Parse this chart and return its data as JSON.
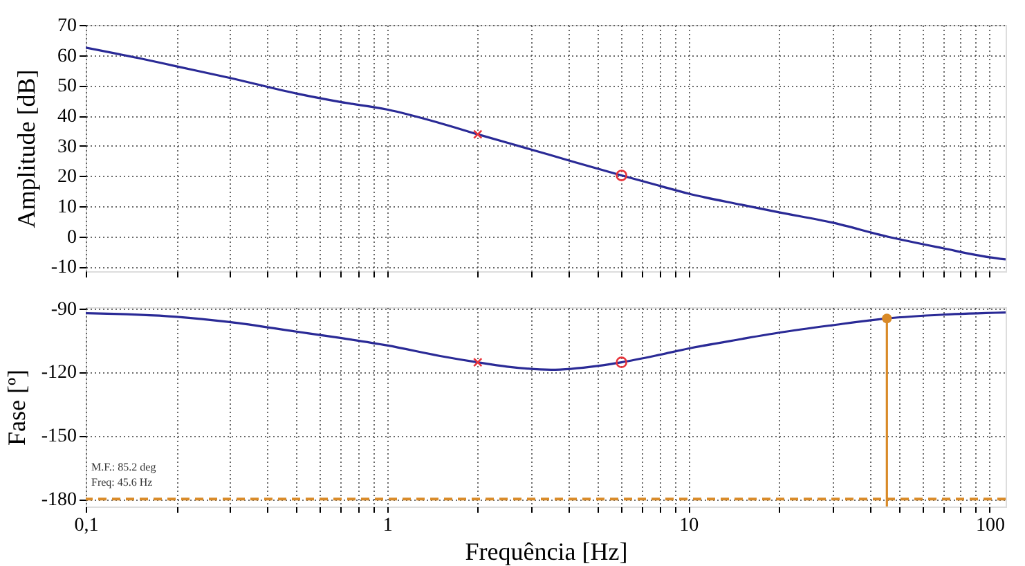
{
  "chart_data": [
    {
      "type": "line",
      "ylabel": "Amplitude [dB]",
      "log": "x",
      "xlim": [
        0.1,
        113
      ],
      "ylim": [
        -11.5,
        70
      ],
      "xticks": [
        {
          "value": 0.1,
          "label": null
        },
        {
          "value": 0.2,
          "label": null
        },
        {
          "value": 0.3,
          "label": null
        },
        {
          "value": 0.4,
          "label": null
        },
        {
          "value": 0.5,
          "label": null
        },
        {
          "value": 0.6,
          "label": null
        },
        {
          "value": 0.7,
          "label": null
        },
        {
          "value": 0.8,
          "label": null
        },
        {
          "value": 0.9,
          "label": null
        },
        {
          "value": 1,
          "label": null
        },
        {
          "value": 2,
          "label": null
        },
        {
          "value": 3,
          "label": null
        },
        {
          "value": 4,
          "label": null
        },
        {
          "value": 5,
          "label": null
        },
        {
          "value": 6,
          "label": null
        },
        {
          "value": 7,
          "label": null
        },
        {
          "value": 8,
          "label": null
        },
        {
          "value": 9,
          "label": null
        },
        {
          "value": 10,
          "label": null
        },
        {
          "value": 20,
          "label": null
        },
        {
          "value": 30,
          "label": null
        },
        {
          "value": 40,
          "label": null
        },
        {
          "value": 50,
          "label": null
        },
        {
          "value": 60,
          "label": null
        },
        {
          "value": 70,
          "label": null
        },
        {
          "value": 80,
          "label": null
        },
        {
          "value": 90,
          "label": null
        },
        {
          "value": 100,
          "label": null
        }
      ],
      "yticks": [
        -10,
        0,
        10,
        20,
        30,
        40,
        50,
        60,
        70
      ],
      "grid": true,
      "tick_labels": "y",
      "series": [
        {
          "color": "#2a2a96",
          "x": [
            0.1,
            0.15,
            0.2,
            0.3,
            0.5,
            0.7,
            1,
            1.5,
            2,
            3,
            4,
            6,
            8,
            10,
            15,
            20,
            30,
            45.6,
            70,
            100,
            113
          ],
          "values": [
            62.5,
            59,
            56.3,
            52.5,
            47.3,
            44.5,
            42,
            37.5,
            33.8,
            28.8,
            25.2,
            20.2,
            16.8,
            14.2,
            10.5,
            8,
            4.6,
            0,
            -3.9,
            -6.9,
            -7.6
          ]
        },
        {
          "type": "scatter",
          "marker": "cross",
          "color": "#e8333a",
          "x": [
            2
          ],
          "values": [
            33.8
          ]
        },
        {
          "type": "scatter",
          "marker": "circle",
          "color": "#e8333a",
          "x": [
            6
          ],
          "values": [
            20.2
          ]
        }
      ]
    },
    {
      "type": "line",
      "xlabel": "Frequência [Hz]",
      "ylabel": "Fase [º]",
      "log": "x",
      "xlim": [
        0.1,
        113
      ],
      "ylim": [
        -183.5,
        -89.5
      ],
      "xticks": [
        {
          "value": 0.1,
          "label": "0,1"
        },
        {
          "value": 0.2,
          "label": null
        },
        {
          "value": 0.3,
          "label": null
        },
        {
          "value": 0.4,
          "label": null
        },
        {
          "value": 0.5,
          "label": null
        },
        {
          "value": 0.6,
          "label": null
        },
        {
          "value": 0.7,
          "label": null
        },
        {
          "value": 0.8,
          "label": null
        },
        {
          "value": 0.9,
          "label": null
        },
        1,
        {
          "value": 2,
          "label": null
        },
        {
          "value": 3,
          "label": null
        },
        {
          "value": 4,
          "label": null
        },
        {
          "value": 5,
          "label": null
        },
        {
          "value": 6,
          "label": null
        },
        {
          "value": 7,
          "label": null
        },
        {
          "value": 8,
          "label": null
        },
        {
          "value": 9,
          "label": null
        },
        10,
        {
          "value": 20,
          "label": null
        },
        {
          "value": 30,
          "label": null
        },
        {
          "value": 40,
          "label": null
        },
        {
          "value": 50,
          "label": null
        },
        {
          "value": 60,
          "label": null
        },
        {
          "value": 70,
          "label": null
        },
        {
          "value": 80,
          "label": null
        },
        {
          "value": 90,
          "label": null
        },
        100
      ],
      "yticks": [
        -90,
        -120,
        -150,
        -180
      ],
      "grid": true,
      "series": [
        {
          "color": "#2a2a96",
          "x": [
            0.1,
            0.2,
            0.3,
            0.5,
            0.7,
            1,
            1.5,
            2,
            2.5,
            3.5,
            5,
            6,
            8,
            10,
            15,
            20,
            30,
            45.6,
            70,
            113
          ],
          "values": [
            -92.3,
            -94,
            -96.5,
            -101,
            -104,
            -107.5,
            -112.5,
            -115.5,
            -117.5,
            -119,
            -117.2,
            -115.5,
            -112,
            -109,
            -104.5,
            -101.5,
            -98,
            -94.8,
            -93,
            -92
          ]
        },
        {
          "type": "scatter",
          "marker": "cross",
          "color": "#e8333a",
          "x": [
            2
          ],
          "values": [
            -115.5
          ]
        },
        {
          "type": "scatter",
          "marker": "circle",
          "color": "#e8333a",
          "x": [
            6
          ],
          "values": [
            -115.5
          ]
        },
        {
          "type": "line",
          "color": "#d98a28",
          "x": [
            45.6,
            45.6
          ],
          "values": [
            -183.5,
            -94.8
          ]
        },
        {
          "type": "scatter",
          "marker": "circle",
          "color": "#d98a28",
          "x": [
            45.6
          ],
          "values": [
            -94.8
          ]
        }
      ],
      "ref_lines": [
        {
          "axis": "y",
          "value": -180,
          "color": "#d98a28",
          "line_style": "dashed"
        }
      ],
      "annotations": [
        "M.F.: 85.2 deg",
        "Freq: 45.6 Hz"
      ]
    }
  ]
}
